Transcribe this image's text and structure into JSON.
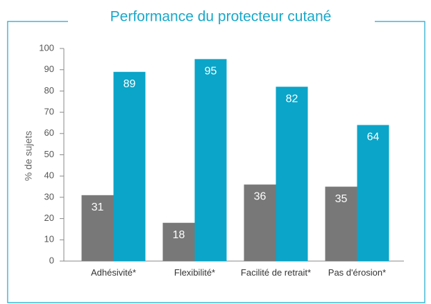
{
  "chart_data": {
    "type": "bar",
    "title": "Performance du protecteur cutané",
    "y_label": "% de sujets",
    "categories": [
      "Adhésivité*",
      "Flexibilité*",
      "Facilité de retrait*",
      "Pas d'érosion*"
    ],
    "series": [
      {
        "color": "#787878",
        "values": [
          31,
          18,
          36,
          35
        ]
      },
      {
        "color": "#0aa5c8",
        "values": [
          89,
          95,
          82,
          64
        ]
      }
    ],
    "ylim": [
      0,
      100
    ],
    "yticks": [
      0,
      10,
      20,
      30,
      40,
      50,
      60,
      70,
      80,
      90,
      100
    ],
    "grid": false
  }
}
